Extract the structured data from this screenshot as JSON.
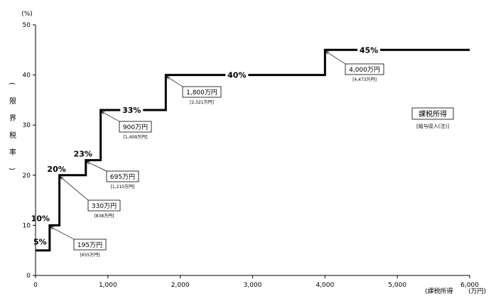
{
  "chart_data": {
    "type": "line",
    "step": "post",
    "x_unit": "(万円)",
    "x_label": "(課税所得",
    "y_unit": "(%)",
    "y_label": [
      "(",
      "限",
      "界",
      "税",
      "率",
      ")"
    ],
    "xlim": [
      0,
      6000
    ],
    "ylim": [
      0,
      50
    ],
    "x_ticks": [
      0,
      1000,
      2000,
      3000,
      4000,
      5000,
      6000
    ],
    "x_tick_labels": [
      "0",
      "1,000",
      "2,000",
      "3,000",
      "4,000",
      "5,000",
      "6,000"
    ],
    "y_ticks": [
      0,
      10,
      20,
      30,
      40,
      50
    ],
    "y_tick_labels": [
      "0",
      "10",
      "20",
      "30",
      "40",
      "50"
    ],
    "brackets": [
      {
        "from": 0,
        "to": 195,
        "rate": 5,
        "rate_label": "5%"
      },
      {
        "from": 195,
        "to": 330,
        "rate": 10,
        "rate_label": "10%"
      },
      {
        "from": 330,
        "to": 695,
        "rate": 20,
        "rate_label": "20%"
      },
      {
        "from": 695,
        "to": 900,
        "rate": 23,
        "rate_label": "23%"
      },
      {
        "from": 900,
        "to": 1800,
        "rate": 33,
        "rate_label": "33%"
      },
      {
        "from": 1800,
        "to": 4000,
        "rate": 40,
        "rate_label": "40%"
      },
      {
        "from": 4000,
        "to": 6000,
        "rate": 45,
        "rate_label": "45%"
      }
    ],
    "thresholds": [
      {
        "x": 195,
        "y": 10,
        "label": "195万円",
        "sub": "[655万円]"
      },
      {
        "x": 330,
        "y": 20,
        "label": "330万円",
        "sub": "[838万円]"
      },
      {
        "x": 695,
        "y": 23,
        "label": "695万円",
        "sub": "[1,210万円]"
      },
      {
        "x": 900,
        "y": 33,
        "label": "900万円",
        "sub": "[1,409万円]"
      },
      {
        "x": 1800,
        "y": 40,
        "label": "1,800万円",
        "sub": "[2,321万円]"
      },
      {
        "x": 4000,
        "y": 45,
        "label": "4,000万円",
        "sub": "[4,473万円]"
      }
    ],
    "legend": {
      "title": "課税所得",
      "sub": "[給与収入(注)]"
    }
  }
}
